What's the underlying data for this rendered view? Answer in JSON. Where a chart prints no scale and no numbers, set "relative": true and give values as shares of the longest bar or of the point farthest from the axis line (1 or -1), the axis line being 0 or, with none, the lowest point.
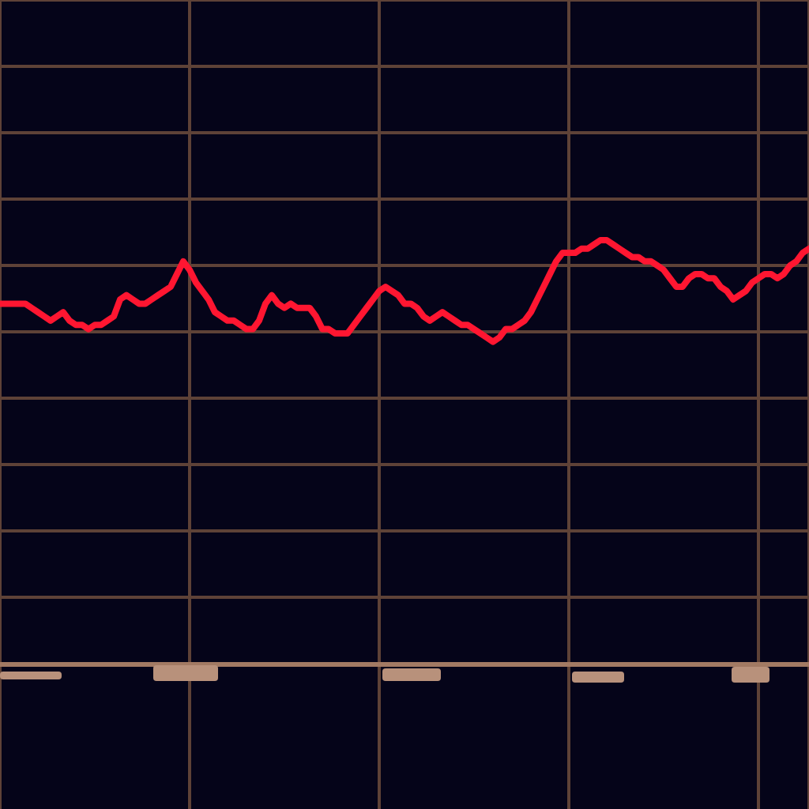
{
  "chart_data": {
    "type": "line",
    "relative": true,
    "grid": true,
    "categories": [
      null,
      null,
      null,
      null,
      null,
      null,
      null,
      null,
      null,
      null,
      null,
      null,
      null,
      null,
      null,
      null,
      null,
      null,
      null,
      null,
      null,
      null,
      null,
      null,
      null,
      null,
      null,
      null,
      null,
      null,
      null,
      null,
      null,
      null,
      null,
      null,
      null,
      null,
      null,
      null,
      null,
      null,
      null,
      null,
      null,
      null,
      null,
      null,
      null,
      null,
      null,
      null,
      null,
      null,
      null,
      null,
      null,
      null,
      null,
      null,
      null,
      null,
      null,
      null,
      null,
      null,
      null,
      null,
      null,
      null,
      null,
      null,
      null,
      null,
      null,
      null,
      null,
      null,
      null,
      null,
      null,
      null,
      null,
      null,
      null,
      null,
      null,
      null,
      null,
      null,
      null,
      null,
      null,
      null,
      null,
      null,
      null,
      null,
      null,
      null,
      null,
      null,
      null,
      null,
      null,
      null,
      null,
      null,
      null,
      null,
      null,
      null,
      null,
      null,
      null,
      null,
      null,
      null,
      null,
      null,
      null,
      null,
      null,
      null,
      null,
      null,
      null,
      null,
      null
    ],
    "series": [
      {
        "color": "#ff1631",
        "values": [
          0.85,
          0.85,
          0.85,
          0.85,
          0.85,
          0.84,
          0.83,
          0.82,
          0.81,
          0.82,
          0.83,
          0.81,
          0.8,
          0.8,
          0.79,
          0.8,
          0.8,
          0.81,
          0.82,
          0.86,
          0.87,
          0.86,
          0.85,
          0.85,
          0.86,
          0.87,
          0.88,
          0.89,
          0.92,
          0.95,
          0.93,
          0.9,
          0.88,
          0.86,
          0.83,
          0.82,
          0.81,
          0.81,
          0.8,
          0.79,
          0.79,
          0.81,
          0.85,
          0.87,
          0.85,
          0.84,
          0.85,
          0.84,
          0.84,
          0.84,
          0.82,
          0.79,
          0.79,
          0.78,
          0.78,
          0.78,
          0.8,
          0.82,
          0.84,
          0.86,
          0.88,
          0.89,
          0.88,
          0.87,
          0.85,
          0.85,
          0.84,
          0.82,
          0.81,
          0.82,
          0.83,
          0.82,
          0.81,
          0.8,
          0.8,
          0.79,
          0.78,
          0.77,
          0.76,
          0.77,
          0.79,
          0.79,
          0.8,
          0.81,
          0.83,
          0.86,
          0.89,
          0.92,
          0.95,
          0.97,
          0.97,
          0.97,
          0.98,
          0.98,
          0.99,
          1,
          1,
          0.99,
          0.98,
          0.97,
          0.96,
          0.96,
          0.95,
          0.95,
          0.94,
          0.93,
          0.91,
          0.89,
          0.89,
          0.91,
          0.92,
          0.92,
          0.91,
          0.91,
          0.89,
          0.88,
          0.86,
          0.87,
          0.88,
          0.9,
          0.91,
          0.92,
          0.92,
          0.91,
          0.92,
          0.94,
          0.95,
          0.97,
          0.98
        ]
      }
    ]
  }
}
